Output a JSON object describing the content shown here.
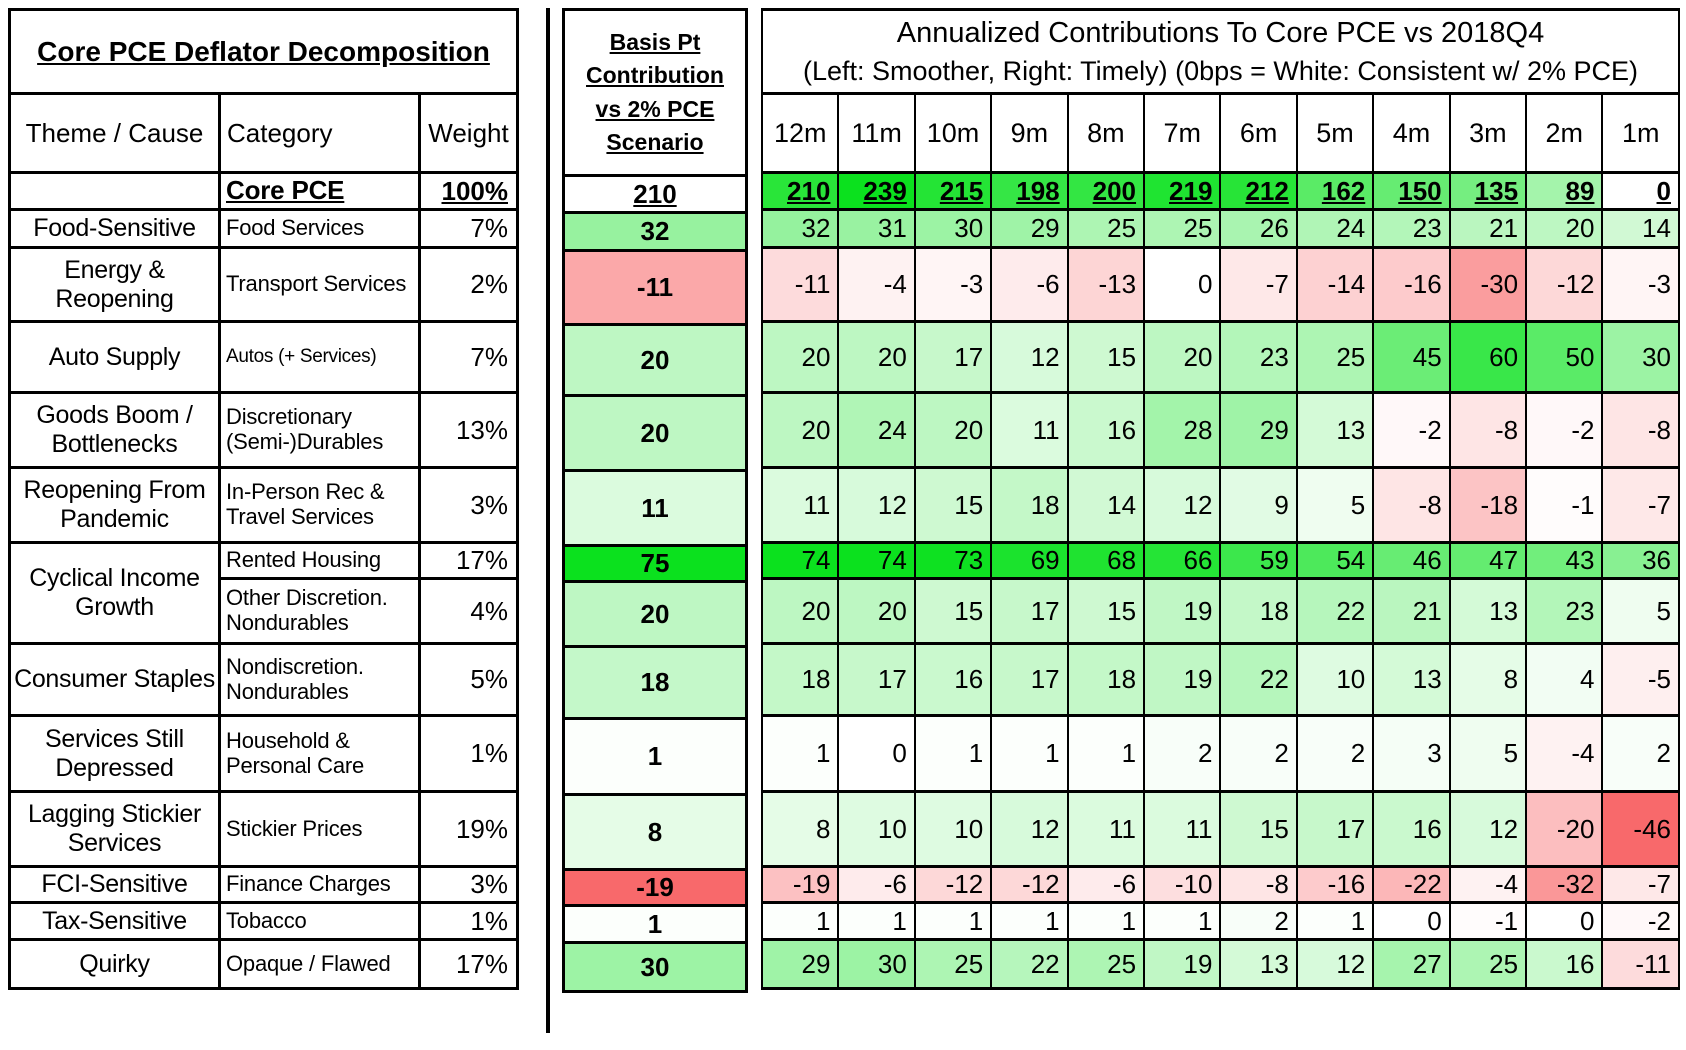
{
  "left_panel": {
    "title": "Core PCE Deflator Decomposition",
    "columns": {
      "theme": "Theme / Cause",
      "category": "Category",
      "weight": "Weight"
    }
  },
  "middle_panel": {
    "header": "Basis Pt Contribution vs 2% PCE Scenario"
  },
  "right_panel": {
    "title_line1": "Annualized Contributions To Core PCE vs 2018Q4",
    "title_line2": "(Left: Smoother, Right: Timely) (0bps = White: Consistent w/ 2% PCE)"
  },
  "chart_data": {
    "type": "heatmap",
    "columns": [
      "12m",
      "11m",
      "10m",
      "9m",
      "8m",
      "7m",
      "6m",
      "5m",
      "4m",
      "3m",
      "2m",
      "1m"
    ],
    "total_row": {
      "theme": "",
      "category": "Core PCE",
      "weight": "100%",
      "basis": 210,
      "values": [
        210,
        239,
        215,
        198,
        200,
        219,
        212,
        162,
        150,
        135,
        89,
        0
      ]
    },
    "rows": [
      {
        "theme": "Food-Sensitive",
        "category": "Food Services",
        "weight": "7%",
        "basis": 32,
        "values": [
          32,
          31,
          30,
          29,
          25,
          25,
          26,
          24,
          23,
          21,
          20,
          14
        ]
      },
      {
        "theme": "Energy & Reopening",
        "category": "Transport Services",
        "weight": "2%",
        "basis": -11,
        "values": [
          -11,
          -4,
          -3,
          -6,
          -13,
          0,
          -7,
          -14,
          -16,
          -30,
          -12,
          -3
        ]
      },
      {
        "theme": "Auto Supply",
        "category": "Autos (+ Services)",
        "weight": "7%",
        "basis": 20,
        "values": [
          20,
          20,
          17,
          12,
          15,
          20,
          23,
          25,
          45,
          60,
          50,
          30
        ]
      },
      {
        "theme": "Goods Boom / Bottlenecks",
        "category": "Discretionary (Semi-)Durables",
        "weight": "13%",
        "basis": 20,
        "values": [
          20,
          24,
          20,
          11,
          16,
          28,
          29,
          13,
          -2,
          -8,
          -2,
          -8
        ]
      },
      {
        "theme": "Reopening From Pandemic",
        "category": "In-Person Rec & Travel Services",
        "weight": "3%",
        "basis": 11,
        "values": [
          11,
          12,
          15,
          18,
          14,
          12,
          9,
          5,
          -8,
          -18,
          -1,
          -7
        ]
      },
      {
        "theme": "Cyclical Income Growth",
        "theme_rowspan": 2,
        "category": "Rented Housing",
        "weight": "17%",
        "basis": 75,
        "values": [
          74,
          74,
          73,
          69,
          68,
          66,
          59,
          54,
          46,
          47,
          43,
          36
        ]
      },
      {
        "theme": null,
        "category": "Other Discretion. Nondurables",
        "weight": "4%",
        "basis": 20,
        "values": [
          20,
          20,
          15,
          17,
          15,
          19,
          18,
          22,
          21,
          13,
          23,
          5
        ]
      },
      {
        "theme": "Consumer Staples",
        "category": "Nondiscretion. Nondurables",
        "weight": "5%",
        "basis": 18,
        "values": [
          18,
          17,
          16,
          17,
          18,
          19,
          22,
          10,
          13,
          8,
          4,
          -5
        ]
      },
      {
        "theme": "Services Still Depressed",
        "category": "Household & Personal Care",
        "weight": "1%",
        "basis": 1,
        "values": [
          1,
          0,
          1,
          1,
          1,
          2,
          2,
          2,
          3,
          5,
          -4,
          2
        ]
      },
      {
        "theme": "Lagging Stickier Services",
        "category": "Stickier Prices",
        "weight": "19%",
        "basis": 8,
        "values": [
          8,
          10,
          10,
          12,
          11,
          11,
          15,
          17,
          16,
          12,
          -20,
          -46
        ]
      },
      {
        "theme": "FCI-Sensitive",
        "category": "Finance Charges",
        "weight": "3%",
        "basis": -19,
        "values": [
          -19,
          -6,
          -12,
          -12,
          -6,
          -10,
          -8,
          -16,
          -22,
          -4,
          -32,
          -7
        ]
      },
      {
        "theme": "Tax-Sensitive",
        "category": "Tobacco",
        "weight": "1%",
        "basis": 1,
        "values": [
          1,
          1,
          1,
          1,
          1,
          1,
          2,
          1,
          0,
          -1,
          0,
          -2
        ]
      },
      {
        "theme": "Quirky",
        "category": "Opaque / Flawed",
        "weight": "17%",
        "basis": 30,
        "values": [
          29,
          30,
          25,
          22,
          25,
          19,
          13,
          12,
          27,
          25,
          16,
          -11
        ]
      }
    ],
    "color_scale": {
      "positive_full_green": "#0BE11E",
      "negative_full_red": "#F8696B",
      "zero_white": "#FFFFFF",
      "core_row_max": 239,
      "grid_positive_max": 74,
      "grid_negative_max": 46,
      "basis_positive_max": 75,
      "basis_negative_max": 19
    },
    "title": "Annualized Contributions To Core PCE vs 2018Q4",
    "legend": "0bps = White: Consistent w/ 2% PCE"
  }
}
